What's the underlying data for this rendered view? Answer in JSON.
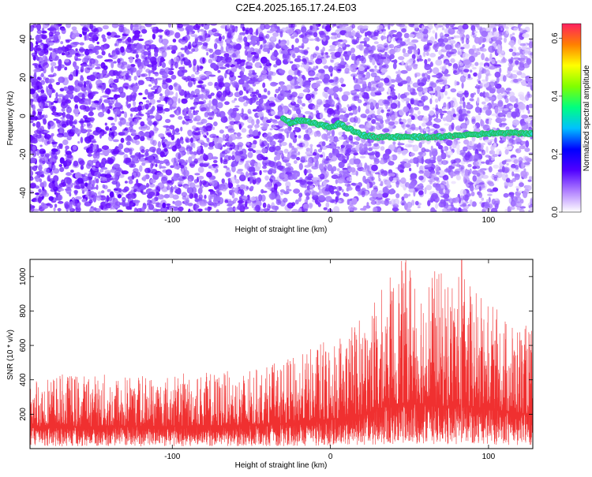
{
  "title": "C2E4.2025.165.17.24.E03",
  "colors": {
    "snr_line": "#f03030",
    "ridge_outline": "#20c060",
    "ridge_fill": "#30e0e0",
    "ridge_core": "#d04040"
  },
  "chart_data": [
    {
      "type": "heatmap",
      "panel": "spectrogram",
      "xlabel": "Height of straight line (km)",
      "ylabel": "Frequency (Hz)",
      "xlim": [
        -190,
        128
      ],
      "ylim": [
        -50,
        48
      ],
      "xticks": [
        -100,
        0,
        100
      ],
      "yticks": [
        -40,
        -20,
        0,
        20,
        40
      ],
      "colorbar": {
        "label": "Normalized spectral amplitude",
        "range": [
          0.0,
          0.65
        ],
        "ticks": [
          0.0,
          0.2,
          0.4,
          0.6
        ],
        "colormap": [
          "#ffffff",
          "#b080ff",
          "#5000ff",
          "#0000ff",
          "#00c0ff",
          "#00ff80",
          "#80ff00",
          "#ffff00",
          "#ff8000",
          "#ff2060"
        ]
      },
      "ridge": {
        "x": [
          -30,
          -25,
          -20,
          -15,
          -10,
          -5,
          0,
          5,
          10,
          15,
          20,
          30,
          40,
          50,
          60,
          70,
          80,
          90,
          100,
          110,
          120,
          128
        ],
        "y": [
          -1,
          -4,
          -2,
          -3,
          -4,
          -5,
          -6,
          -4,
          -6,
          -8,
          -10,
          -11,
          -11,
          -11,
          -11,
          -11,
          -10,
          -10,
          -9,
          -9,
          -9,
          -9
        ]
      }
    },
    {
      "type": "line",
      "panel": "snr",
      "xlabel": "Height of straight line (km)",
      "ylabel": "SNR (10 * v/v)",
      "xlim": [
        -190,
        128
      ],
      "ylim": [
        0,
        1100
      ],
      "xticks": [
        -100,
        0,
        100
      ],
      "yticks": [
        200,
        400,
        600,
        800,
        1000
      ],
      "envelope": {
        "x": [
          -190,
          -150,
          -100,
          -50,
          -20,
          0,
          20,
          30,
          40,
          50,
          60,
          70,
          80,
          90,
          100,
          110,
          128
        ],
        "baseline": [
          130,
          130,
          130,
          135,
          150,
          170,
          200,
          230,
          260,
          270,
          260,
          250,
          250,
          240,
          230,
          220,
          200
        ],
        "amplitude": [
          220,
          220,
          220,
          230,
          280,
          350,
          420,
          480,
          560,
          620,
          580,
          560,
          560,
          500,
          450,
          400,
          360
        ],
        "peak_x": 83,
        "peak_value": 1095
      }
    }
  ]
}
